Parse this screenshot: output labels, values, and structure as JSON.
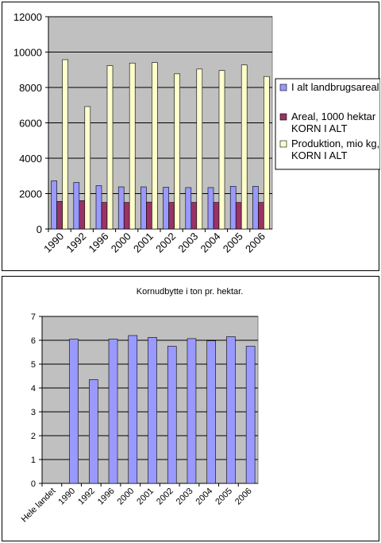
{
  "chart_data": [
    {
      "type": "bar",
      "title": "",
      "categories": [
        "1990",
        "1992",
        "1996",
        "2000",
        "2001",
        "2002",
        "2003",
        "2004",
        "2005",
        "2006"
      ],
      "series": [
        {
          "name": "I alt landbrugsareal",
          "color": "#9999ff",
          "values": [
            2720,
            2630,
            2450,
            2380,
            2380,
            2360,
            2340,
            2340,
            2410,
            2410
          ]
        },
        {
          "name": "Areal, 1000 hektar KORN  I ALT",
          "color": "#993366",
          "values": [
            1560,
            1600,
            1500,
            1500,
            1520,
            1500,
            1500,
            1500,
            1500,
            1500
          ]
        },
        {
          "name": "Produktion, mio kg, KORN  I ALT",
          "color": "#ffffcc",
          "values": [
            9570,
            6920,
            9230,
            9380,
            9410,
            8770,
            9040,
            8960,
            9270,
            8620
          ]
        }
      ],
      "ylim": [
        0,
        12000
      ],
      "yticks": [
        0,
        2000,
        4000,
        6000,
        8000,
        10000,
        12000
      ],
      "plot_background": "#c0c0c0",
      "grid": true,
      "legend_position": "right"
    },
    {
      "type": "bar",
      "title": "Kornudbytte i ton pr. hektar.",
      "categories": [
        "Hele landet",
        "1990",
        "1992",
        "1996",
        "2000",
        "2001",
        "2002",
        "2003",
        "2004",
        "2005",
        "2006"
      ],
      "series": [
        {
          "color": "#9999ff",
          "values": [
            null,
            6.05,
            4.35,
            6.05,
            6.2,
            6.12,
            5.75,
            6.07,
            5.98,
            6.15,
            5.75
          ]
        }
      ],
      "ylim": [
        0,
        7
      ],
      "yticks": [
        0,
        1,
        2,
        3,
        4,
        5,
        6,
        7
      ],
      "plot_background": "#c0c0c0",
      "grid": true
    }
  ]
}
